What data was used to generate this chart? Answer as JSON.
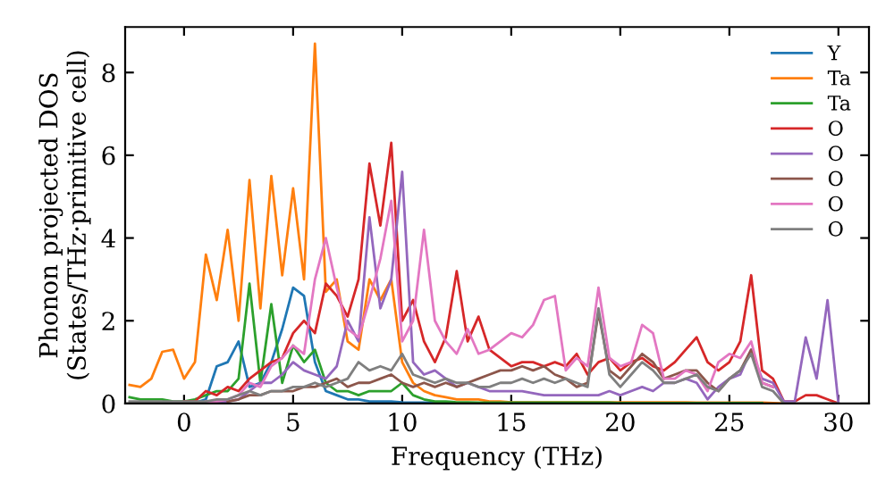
{
  "chart_data": {
    "type": "line",
    "xlabel": "Frequency (THz)",
    "ylabel": "Phonon projected DOS\n(States/THz·primitive cell)",
    "x": [
      -2.5,
      -2,
      -1.5,
      -1,
      -0.5,
      0,
      0.5,
      1,
      1.5,
      2,
      2.5,
      3,
      3.5,
      4,
      4.5,
      5,
      5.5,
      6,
      6.5,
      7,
      7.5,
      8,
      8.5,
      9,
      9.5,
      10,
      10.5,
      11,
      11.5,
      12,
      12.5,
      13,
      13.5,
      14,
      14.5,
      15,
      15.5,
      16,
      16.5,
      17,
      17.5,
      18,
      18.5,
      19,
      19.5,
      20,
      20.5,
      21,
      21.5,
      22,
      22.5,
      23,
      23.5,
      24,
      24.5,
      25,
      25.5,
      26,
      26.5,
      27,
      27.5,
      28,
      28.5,
      29,
      29.5,
      30
    ],
    "series": [
      {
        "name": "Y",
        "color": "#1f77b4",
        "values": [
          null,
          null,
          null,
          null,
          null,
          null,
          0.02,
          0.1,
          0.9,
          1.0,
          1.5,
          0.4,
          0.5,
          1.0,
          1.8,
          2.8,
          2.6,
          1.0,
          0.3,
          0.2,
          0.1,
          0.1,
          0.05,
          0.05,
          0.05,
          0.03,
          0.02,
          0.02,
          0.02,
          null,
          null,
          null,
          null,
          null,
          null,
          null,
          null,
          null,
          null,
          null,
          null,
          null,
          null,
          null,
          null,
          null,
          null,
          null,
          null,
          null,
          null,
          null,
          null,
          null,
          null,
          null,
          null,
          null,
          null,
          null,
          null,
          null,
          null,
          null,
          null,
          null
        ]
      },
      {
        "name": "Ta",
        "color": "#ff7f0e",
        "values": [
          0.45,
          0.4,
          0.6,
          1.25,
          1.3,
          0.6,
          1.0,
          3.6,
          2.5,
          4.2,
          2.0,
          5.4,
          2.3,
          5.5,
          3.1,
          5.2,
          3.0,
          8.7,
          2.7,
          3.0,
          1.5,
          1.3,
          3.0,
          2.5,
          3.0,
          1.0,
          0.5,
          0.3,
          0.2,
          0.15,
          0.1,
          0.1,
          0.1,
          0.05,
          0.05,
          0.03,
          0.03,
          0.03,
          0.03,
          0.03,
          0.03,
          0.03,
          0.03,
          0.03,
          0.03,
          0.03,
          0.03,
          0.03,
          0.03,
          0.03,
          0.03,
          0.03,
          0.02,
          0.02,
          0.02,
          0.02,
          0.02,
          0.02,
          0.02,
          0.01,
          0,
          null,
          null,
          null,
          null,
          null
        ]
      },
      {
        "name": "Ta",
        "color": "#2ca02c",
        "values": [
          0.15,
          0.1,
          0.1,
          0.1,
          0.05,
          0.05,
          0.1,
          0.2,
          0.3,
          0.3,
          0.6,
          2.9,
          0.5,
          2.4,
          0.5,
          1.4,
          1.0,
          1.3,
          0.5,
          0.3,
          0.3,
          0.2,
          0.3,
          0.3,
          0.3,
          0.5,
          0.2,
          0.1,
          0.05,
          0.05,
          0.03,
          0.03,
          0.02,
          0.02,
          0.02,
          0.02,
          0.02,
          0.02,
          0.02,
          0.02,
          0.02,
          0.02,
          0.02,
          0.02,
          0.02,
          0.01,
          0.01,
          0.01,
          0.01,
          0.01,
          0.01,
          0.01,
          0.01,
          0.01,
          0.01,
          0.01,
          0.01,
          0.01,
          0.01,
          null,
          null,
          null,
          null,
          null,
          null,
          null
        ]
      },
      {
        "name": "O",
        "color": "#d62728",
        "values": [
          null,
          null,
          null,
          null,
          null,
          0.05,
          0.05,
          0.3,
          0.2,
          0.4,
          0.3,
          0.6,
          0.8,
          1.0,
          1.1,
          1.7,
          2.0,
          1.7,
          2.9,
          2.6,
          2.1,
          3.0,
          5.8,
          4.3,
          6.3,
          2.0,
          2.5,
          1.5,
          1.0,
          1.6,
          3.2,
          1.5,
          2.1,
          1.3,
          1.1,
          0.9,
          1.0,
          1.0,
          0.9,
          1.0,
          0.9,
          1.2,
          0.7,
          1.0,
          1.1,
          0.8,
          1.0,
          1.1,
          0.9,
          0.8,
          1.0,
          1.3,
          1.6,
          1.0,
          0.8,
          1.0,
          1.5,
          3.1,
          0.8,
          0.6,
          0.05,
          0.05,
          0.2,
          0.2,
          0.1,
          0
        ]
      },
      {
        "name": "O",
        "color": "#9467bd",
        "values": [
          null,
          null,
          null,
          null,
          null,
          null,
          null,
          0.05,
          0.05,
          0.05,
          0.1,
          0.3,
          0.5,
          0.5,
          0.7,
          1.0,
          0.8,
          0.7,
          0.6,
          0.9,
          2.0,
          1.5,
          4.5,
          2.3,
          3.0,
          5.6,
          1.0,
          0.7,
          0.8,
          0.6,
          0.4,
          0.5,
          0.4,
          0.3,
          0.3,
          0.3,
          0.3,
          0.25,
          0.2,
          0.2,
          0.2,
          0.2,
          0.2,
          0.2,
          0.3,
          0.2,
          0.3,
          0.4,
          0.3,
          0.5,
          0.5,
          0.6,
          0.5,
          0.1,
          0.4,
          0.6,
          0.7,
          1.3,
          0.6,
          0.5,
          0.05,
          0.05,
          1.6,
          0.6,
          2.5,
          0
        ]
      },
      {
        "name": "O",
        "color": "#8c564b",
        "values": [
          null,
          null,
          null,
          null,
          null,
          null,
          null,
          null,
          null,
          0.05,
          0.1,
          0.2,
          0.2,
          0.3,
          0.3,
          0.3,
          0.4,
          0.4,
          0.5,
          0.6,
          0.4,
          0.5,
          0.5,
          0.6,
          0.7,
          0.5,
          0.4,
          0.5,
          0.4,
          0.5,
          0.4,
          0.5,
          0.6,
          0.7,
          0.8,
          0.8,
          0.9,
          0.8,
          0.9,
          0.7,
          0.6,
          0.4,
          0.5,
          2.2,
          0.8,
          0.6,
          0.9,
          1.2,
          1.0,
          0.6,
          0.7,
          0.8,
          0.8,
          0.5,
          0.3,
          0.6,
          0.8,
          1.3,
          0.5,
          0.4,
          null,
          null,
          null,
          null,
          null,
          null
        ]
      },
      {
        "name": "O",
        "color": "#e377c2",
        "values": [
          null,
          null,
          null,
          null,
          null,
          null,
          null,
          0.05,
          0.05,
          0.1,
          0.2,
          0.5,
          0.4,
          0.9,
          1.1,
          1.4,
          1.2,
          3.0,
          4.0,
          2.8,
          1.8,
          1.6,
          2.5,
          3.5,
          4.9,
          1.5,
          2.0,
          4.2,
          2.0,
          1.5,
          1.2,
          1.8,
          1.2,
          1.3,
          1.5,
          1.7,
          1.6,
          1.9,
          2.5,
          2.6,
          0.8,
          1.1,
          0.9,
          2.8,
          1.1,
          0.9,
          1.0,
          1.9,
          1.7,
          0.6,
          0.6,
          0.8,
          0.7,
          0.3,
          1.0,
          1.2,
          1.1,
          1.5,
          0.5,
          0.4,
          null,
          null,
          null,
          null,
          null,
          null
        ]
      },
      {
        "name": "O",
        "color": "#7f7f7f",
        "values": [
          0.05,
          0.05,
          0.05,
          0.05,
          0.05,
          0.05,
          0.05,
          0.05,
          0.1,
          0.1,
          0.2,
          0.3,
          0.2,
          0.3,
          0.3,
          0.4,
          0.4,
          0.5,
          0.4,
          0.5,
          0.6,
          1.0,
          0.8,
          0.9,
          0.8,
          1.2,
          0.7,
          0.6,
          0.5,
          0.6,
          0.5,
          0.5,
          0.4,
          0.4,
          0.5,
          0.5,
          0.6,
          0.5,
          0.6,
          0.5,
          0.6,
          0.5,
          0.4,
          2.3,
          0.7,
          0.4,
          0.7,
          1.0,
          0.8,
          0.5,
          0.5,
          0.6,
          0.7,
          0.4,
          0.3,
          0.6,
          0.8,
          1.2,
          0.4,
          0.3,
          0,
          0,
          0,
          0,
          0,
          0
        ]
      }
    ],
    "xlim": [
      -2.7,
      31.4
    ],
    "ylim": [
      0,
      9.1
    ],
    "xticks": [
      0,
      5,
      10,
      15,
      20,
      25,
      30
    ],
    "yticks": [
      0,
      2,
      4,
      6,
      8
    ],
    "grid": false,
    "legend": "top right",
    "marker": "none",
    "line_style": "solid"
  }
}
